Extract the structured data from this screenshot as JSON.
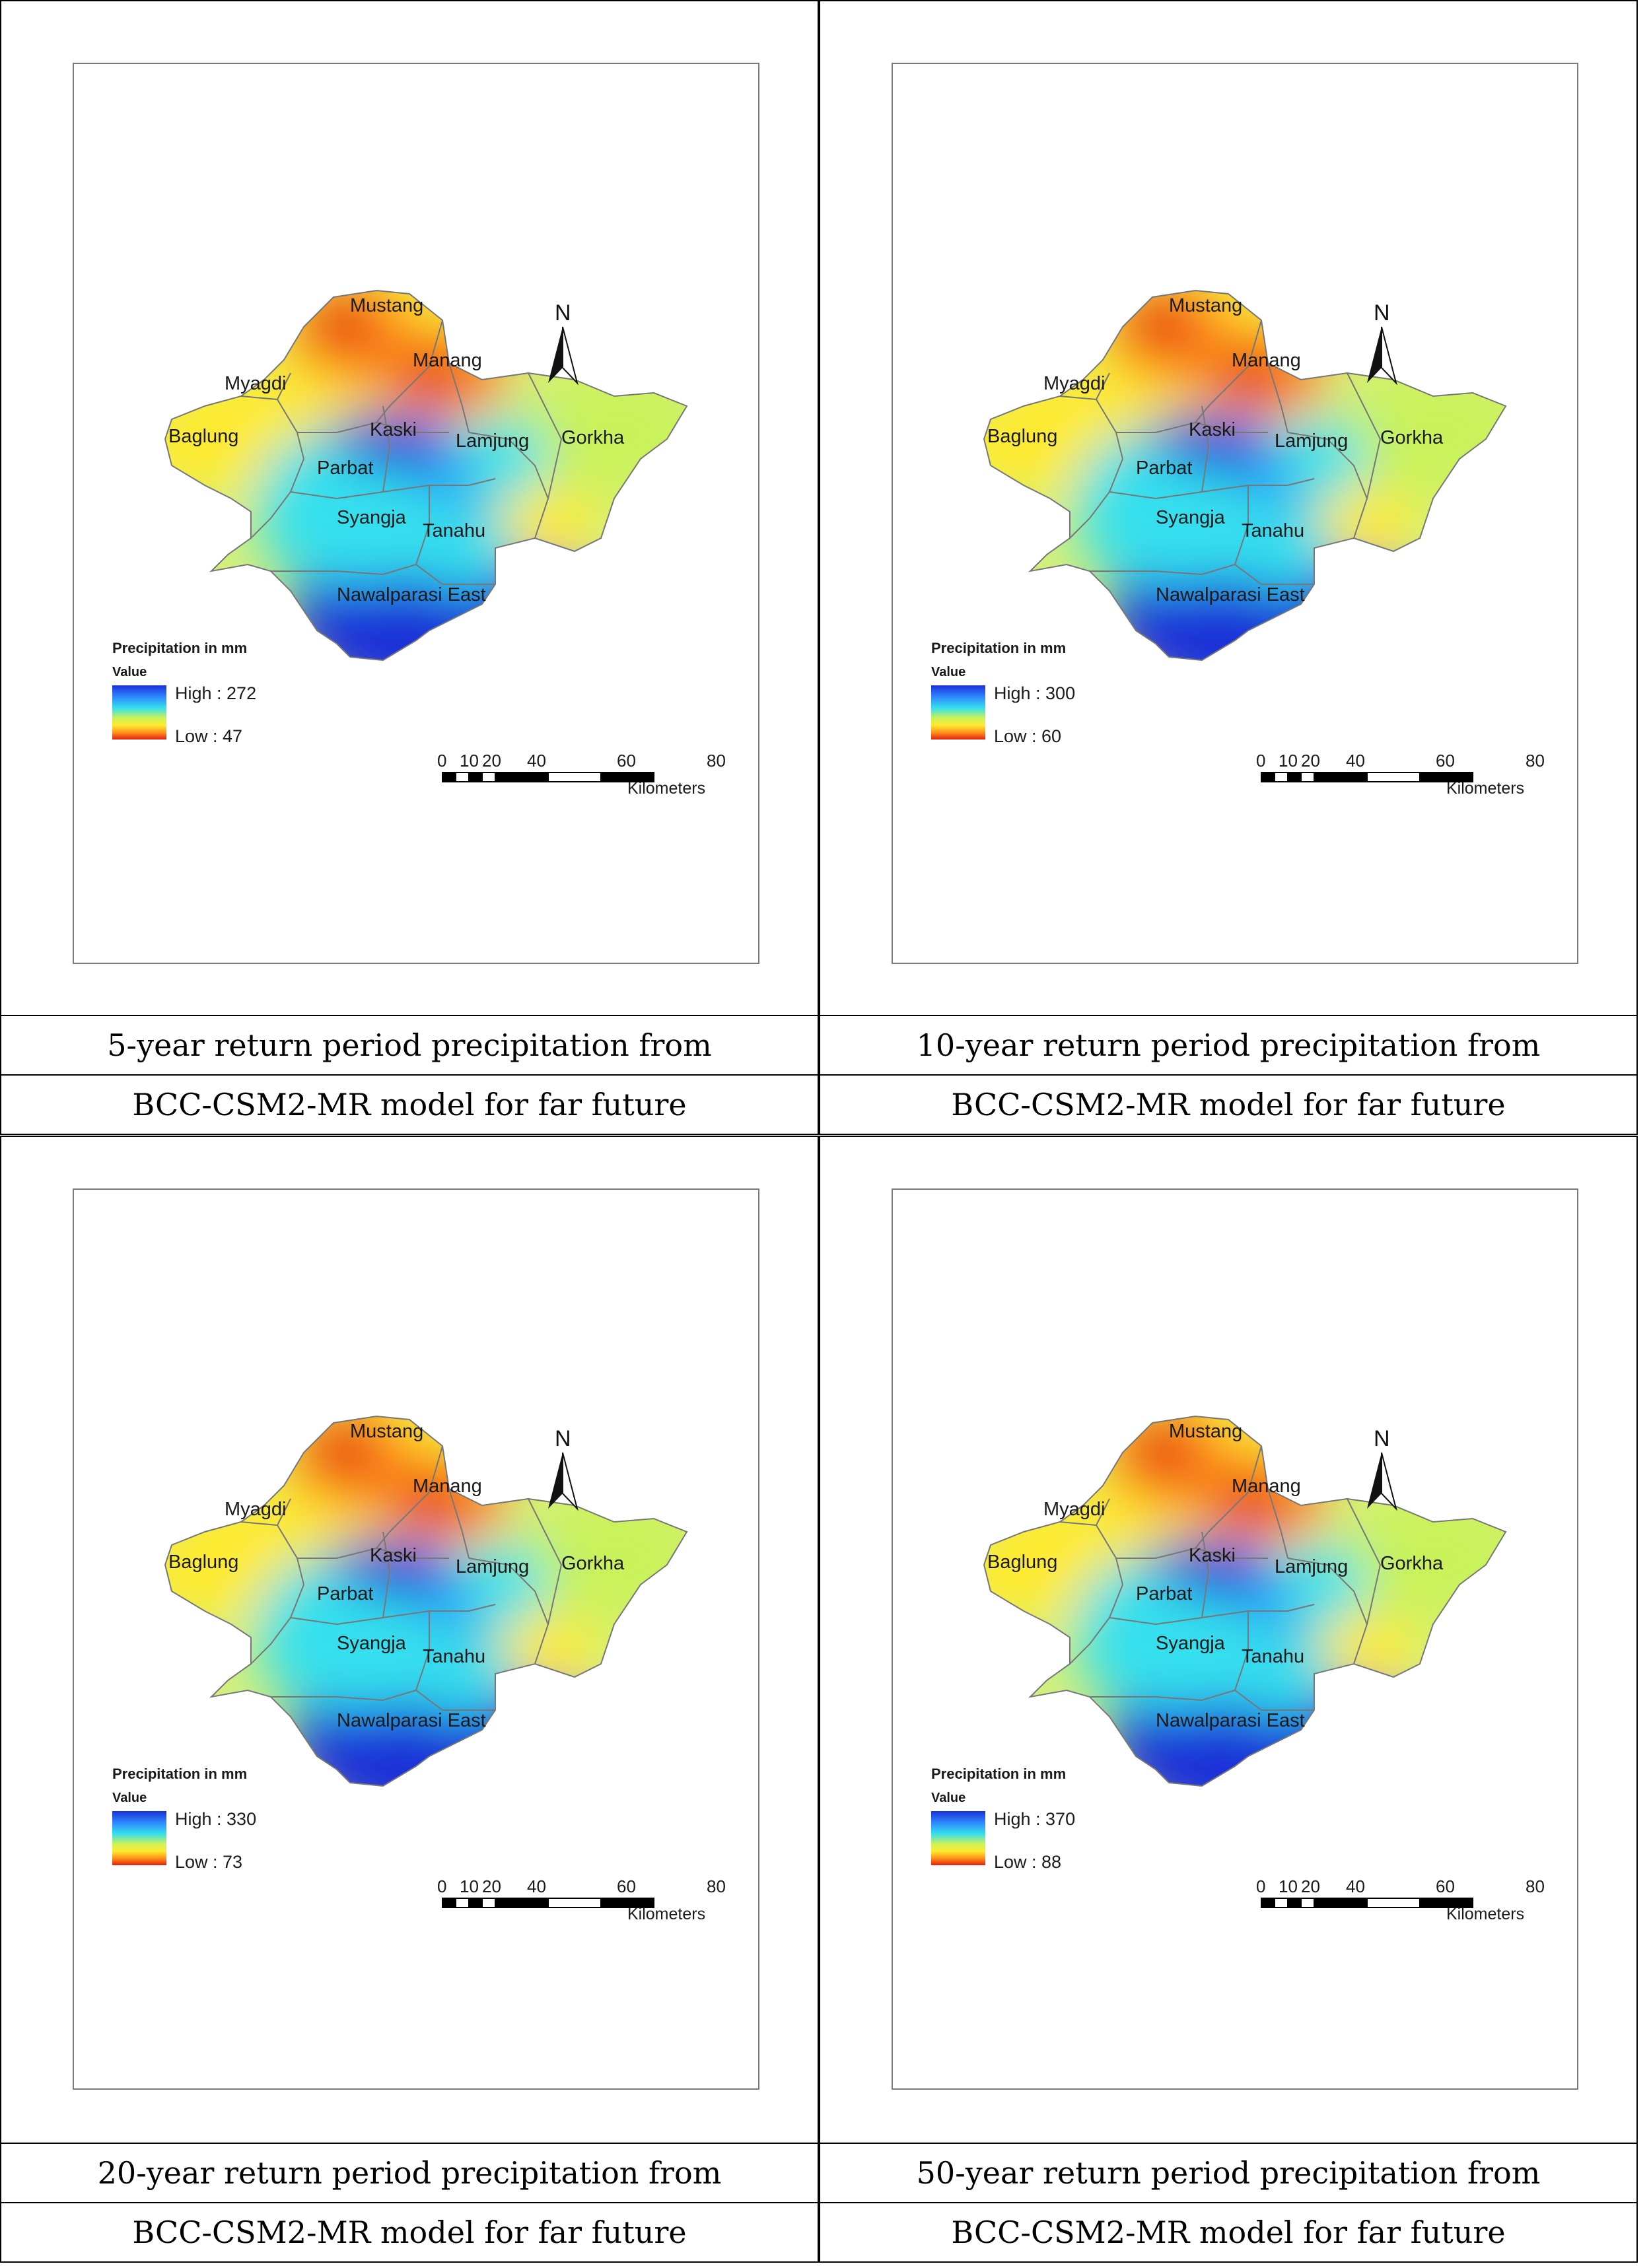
{
  "legend": {
    "title": "Precipitation in mm",
    "subtitle": "Value",
    "color_ramp": [
      "#1a30d8",
      "#2f8bff",
      "#35e0ee",
      "#c9f25a",
      "#ffea2e",
      "#ff8a1a",
      "#e01f10"
    ]
  },
  "north_arrow": {
    "label": "N"
  },
  "scale_bar": {
    "ticks": [
      "0",
      "10",
      "20",
      "40",
      "60",
      "80"
    ],
    "unit": "Kilometers"
  },
  "districts": [
    "Mustang",
    "Manang",
    "Myagdi",
    "Baglung",
    "Kaski",
    "Parbat",
    "Lamjung",
    "Gorkha",
    "Syangja",
    "Tanahu",
    "Nawalparasi East"
  ],
  "panels": [
    {
      "caption_line1": "5-year return period precipitation from",
      "caption_line2": "BCC-CSM2-MR model for far future",
      "high": "High : 272",
      "low": "Low : 47"
    },
    {
      "caption_line1": "10-year return period precipitation from",
      "caption_line2": "BCC-CSM2-MR model for far future",
      "high": "High : 300",
      "low": "Low : 60"
    },
    {
      "caption_line1": "20-year return period precipitation from",
      "caption_line2": "BCC-CSM2-MR model for far future",
      "high": "High : 330",
      "low": "Low : 73"
    },
    {
      "caption_line1": "50-year return period precipitation from",
      "caption_line2": "BCC-CSM2-MR model for far future",
      "high": "High : 370",
      "low": "Low : 88"
    }
  ]
}
